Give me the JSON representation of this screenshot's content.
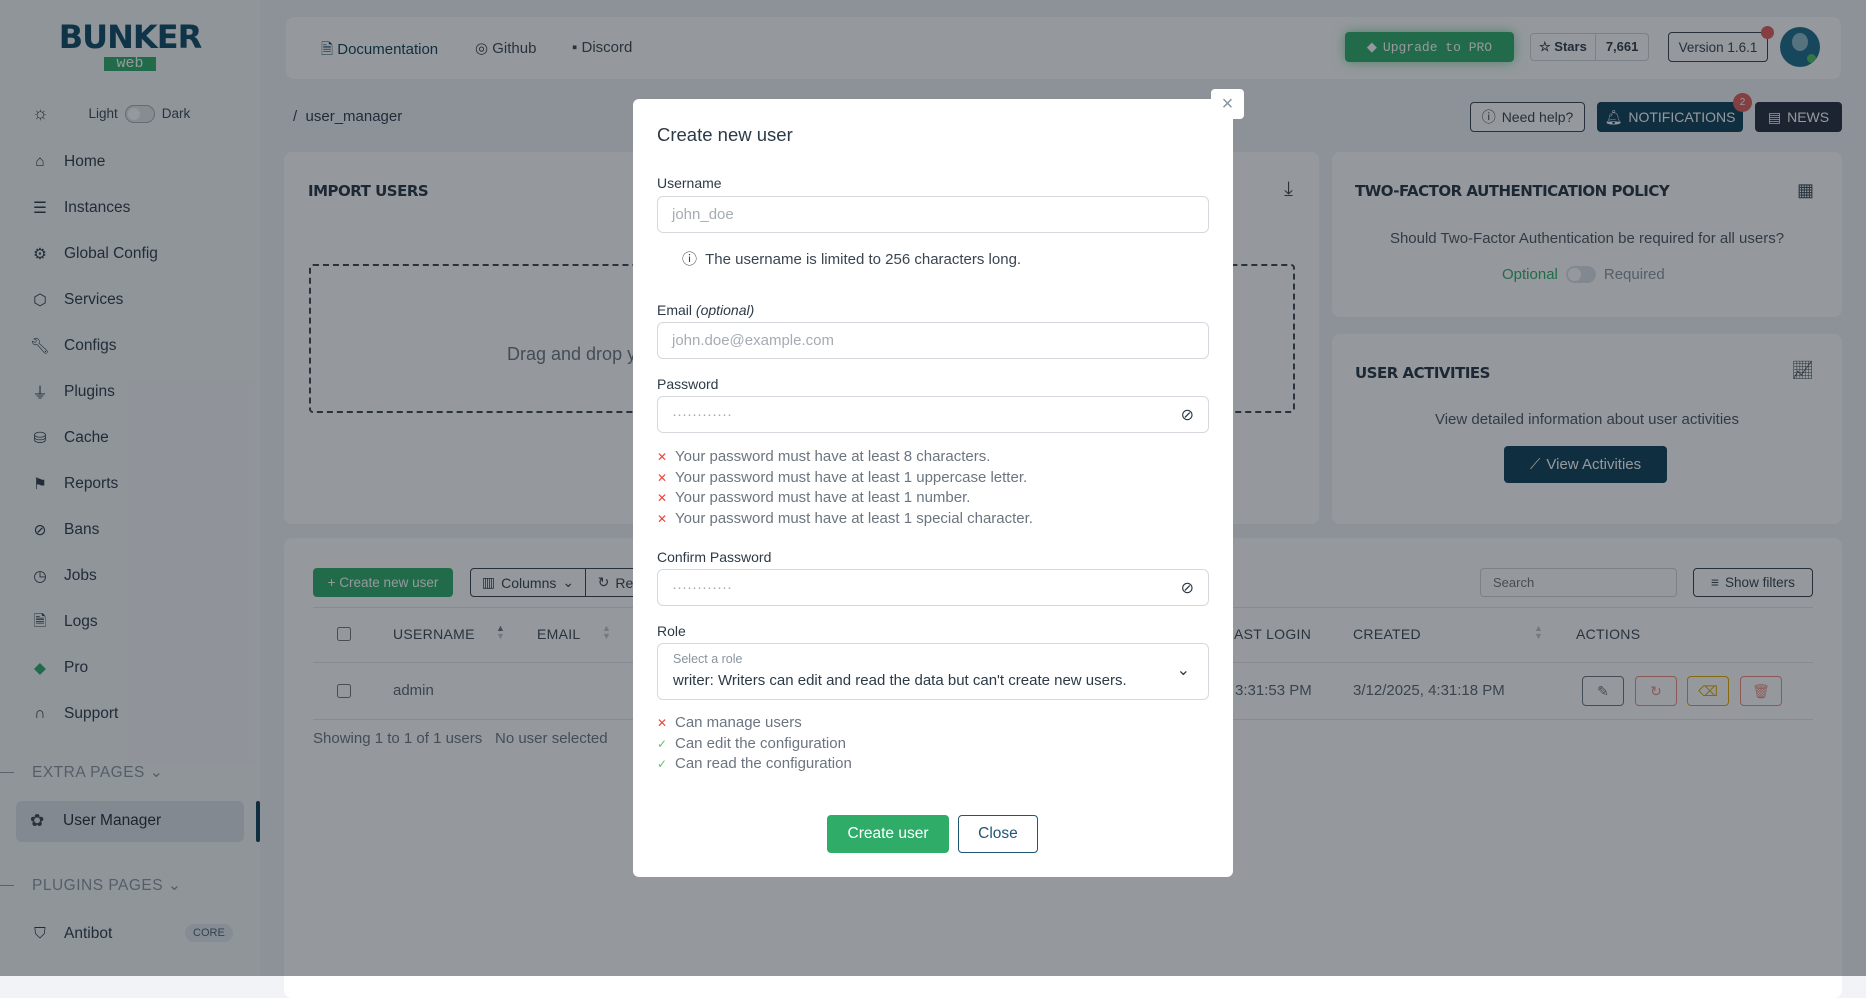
{
  "brand": {
    "logo_top": "BUNKER",
    "logo_bottom": "web"
  },
  "theme": {
    "light": "Light",
    "dark": "Dark"
  },
  "sidebar": {
    "items": [
      {
        "label": "Home",
        "icon": "home-icon"
      },
      {
        "label": "Instances",
        "icon": "server-icon"
      },
      {
        "label": "Global Config",
        "icon": "gear-icon"
      },
      {
        "label": "Services",
        "icon": "cube-icon"
      },
      {
        "label": "Configs",
        "icon": "wrench-icon"
      },
      {
        "label": "Plugins",
        "icon": "plug-icon"
      },
      {
        "label": "Cache",
        "icon": "database-icon"
      },
      {
        "label": "Reports",
        "icon": "flag-icon"
      },
      {
        "label": "Bans",
        "icon": "ban-icon"
      },
      {
        "label": "Jobs",
        "icon": "clock-icon"
      },
      {
        "label": "Logs",
        "icon": "file-search-icon"
      },
      {
        "label": "Pro",
        "icon": "diamond-icon"
      },
      {
        "label": "Support",
        "icon": "headset-icon"
      }
    ],
    "extra_pages": "EXTRA PAGES",
    "active_item": "User Manager",
    "plugins_pages": "PLUGINS PAGES",
    "antibot": "Antibot",
    "antibot_badge": "CORE"
  },
  "topbar": {
    "documentation": "Documentation",
    "github": "Github",
    "discord": "Discord",
    "upgrade": "Upgrade to PRO",
    "stars": "Stars",
    "stars_count": "7,661",
    "version": "Version 1.6.1"
  },
  "breadcrumb": {
    "sep": "/",
    "page": "user_manager"
  },
  "actions": {
    "help": "Need help?",
    "notifications": "NOTIFICATIONS",
    "notifications_count": "2",
    "news": "NEWS"
  },
  "import": {
    "title": "IMPORT USERS",
    "drop": "Drag and drop y"
  },
  "tfa": {
    "title": "TWO-FACTOR AUTHENTICATION POLICY",
    "question": "Should Two-Factor Authentication be required for all users?",
    "optional": "Optional",
    "required": "Required"
  },
  "activities": {
    "title": "USER ACTIVITIES",
    "desc": "View detailed information about user activities",
    "button": "View Activities"
  },
  "users": {
    "create": "+ Create new user",
    "columns": "Columns",
    "reset": "Re",
    "search_placeholder": "Search",
    "filters": "Show filters",
    "headers": [
      "USERNAME",
      "EMAIL",
      "AST LOGIN",
      "CREATED",
      "ACTIONS"
    ],
    "rows": [
      {
        "username": "admin",
        "last_login": "3:31:53 PM",
        "created": "3/12/2025, 4:31:18 PM"
      }
    ],
    "showing": "Showing 1 to 1 of 1 users",
    "selected": "No user selected"
  },
  "modal": {
    "title": "Create new user",
    "username_label": "Username",
    "username_placeholder": "john_doe",
    "username_hint": "The username is limited to 256 characters long.",
    "email_label": "Email",
    "email_optional": "(optional)",
    "email_placeholder": "john.doe@example.com",
    "password_label": "Password",
    "password_placeholder": "············",
    "requirements": [
      "Your password must have at least 8 characters.",
      "Your password must have at least 1 uppercase letter.",
      "Your password must have at least 1 number.",
      "Your password must have at least 1 special character."
    ],
    "confirm_label": "Confirm Password",
    "confirm_placeholder": "············",
    "role_label": "Role",
    "role_caption": "Select a role",
    "role_value": "writer: Writers can edit and read the data but can't create new users.",
    "permissions": [
      {
        "label": "Can manage users",
        "granted": false
      },
      {
        "label": "Can edit the configuration",
        "granted": true
      },
      {
        "label": "Can read the configuration",
        "granted": true
      }
    ],
    "create": "Create user",
    "close": "Close"
  },
  "colors": {
    "primary": "#0c3c55",
    "success": "#2eac68",
    "danger": "#f04438",
    "warning": "#e0a800"
  }
}
